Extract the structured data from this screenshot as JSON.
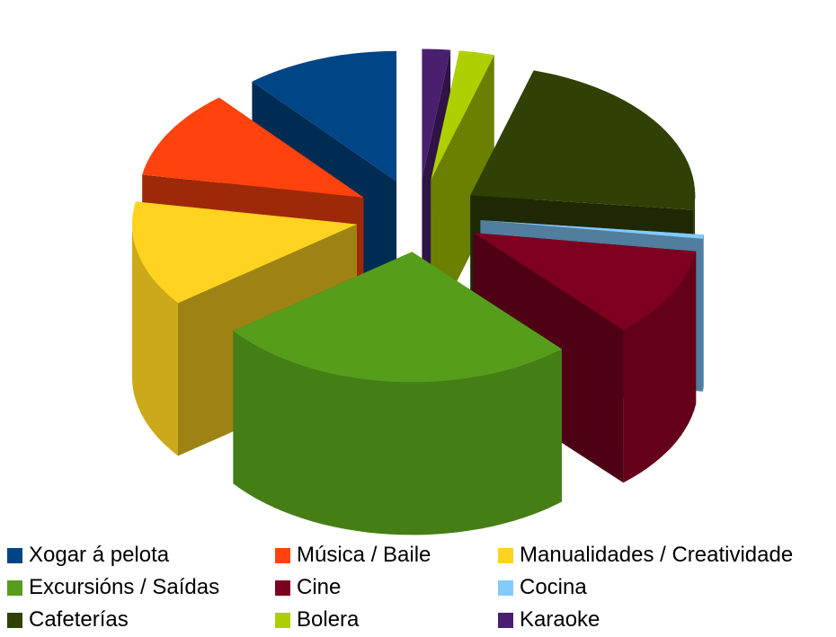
{
  "chart_data": {
    "type": "pie",
    "variant": "3d-exploded",
    "title": "",
    "legend_position": "bottom",
    "legend_columns": 3,
    "slices": [
      {
        "name": "Xogar á pelota",
        "value": 11,
        "color": "#004586"
      },
      {
        "name": "Música / Baile",
        "value": 11,
        "color": "#ff420e"
      },
      {
        "name": "Manualidades / Creatividade",
        "value": 13,
        "color": "#ffd320"
      },
      {
        "name": "Excursións / Saídas",
        "value": 26,
        "color": "#579d1c"
      },
      {
        "name": "Cine",
        "value": 11,
        "color": "#7e0021"
      },
      {
        "name": "Cocina",
        "value": 0.5,
        "color": "#83caff"
      },
      {
        "name": "Cafeterías",
        "value": 22,
        "color": "#314004"
      },
      {
        "name": "Bolera",
        "value": 2.5,
        "color": "#aecf00"
      },
      {
        "name": "Karaoke",
        "value": 2,
        "color": "#4b1f6f"
      }
    ]
  }
}
